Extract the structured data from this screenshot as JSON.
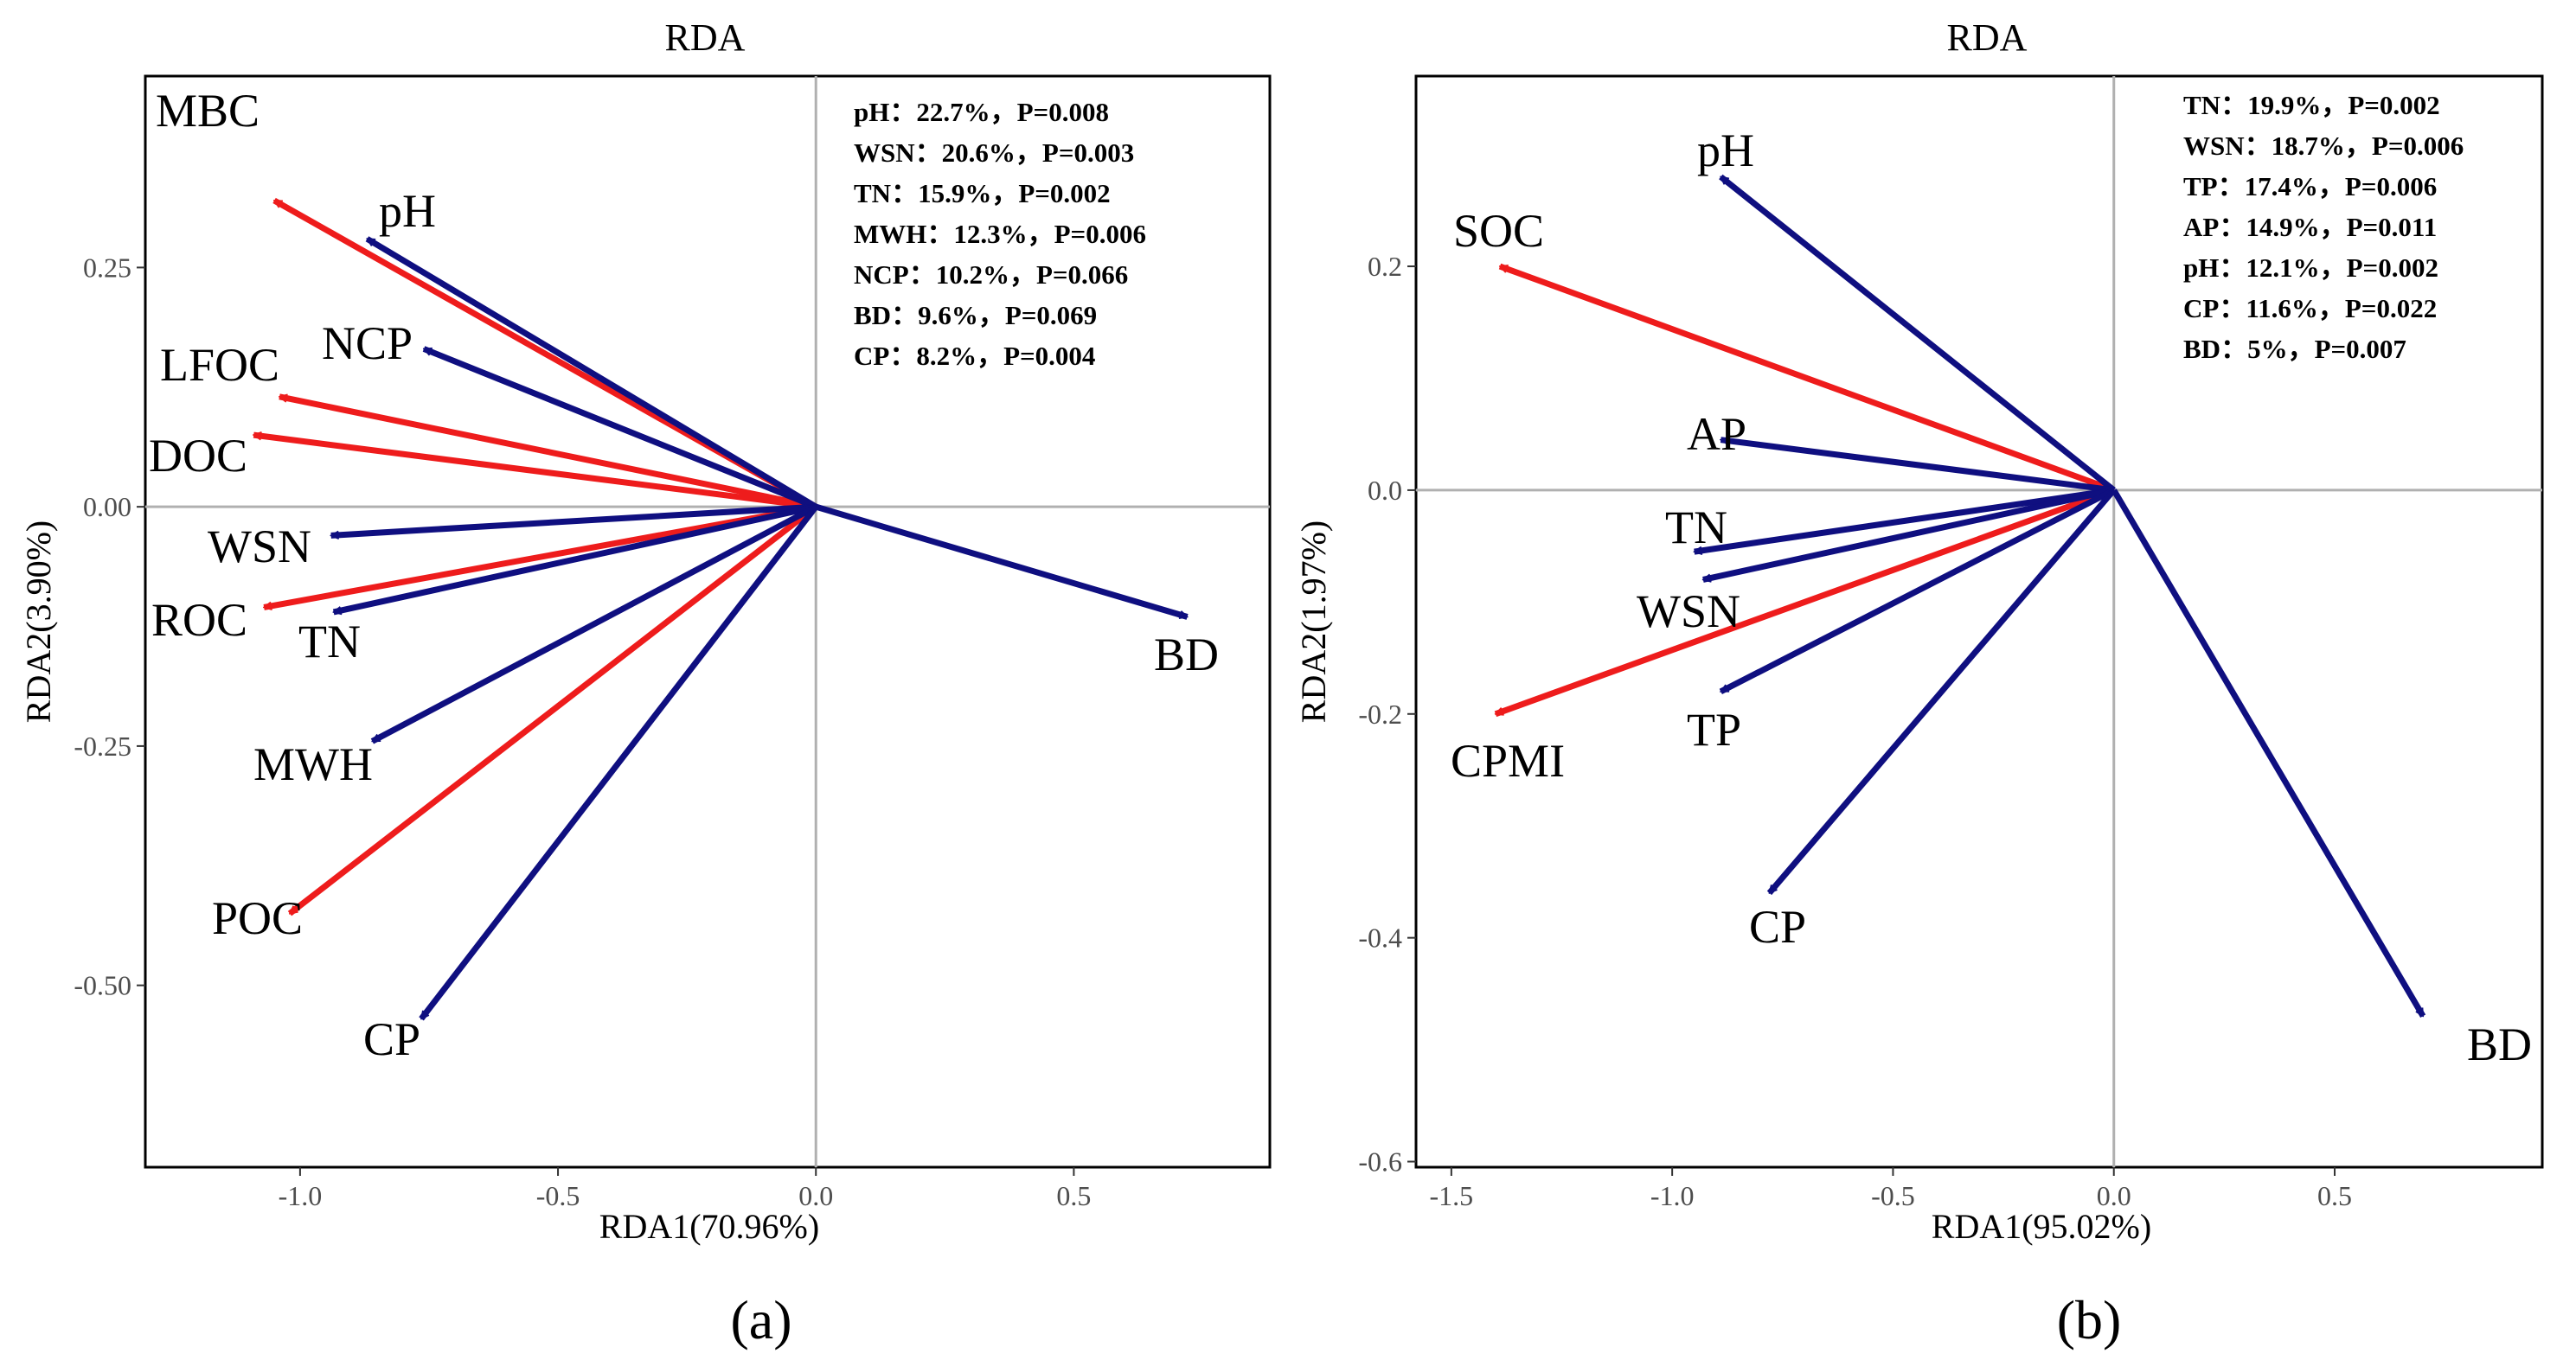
{
  "colors": {
    "response": "#ee1c1c",
    "explanatory": "#0f0f80",
    "refline": "#b0b0b0",
    "frame": "#000000"
  },
  "chart_data": [
    {
      "type": "biplot",
      "panel": "a",
      "title": "RDA",
      "xlabel": "RDA1(70.96%)",
      "ylabel": "RDA2(3.90%)",
      "caption": "(a)",
      "xlim": [
        -1.3,
        0.88
      ],
      "ylim": [
        -0.69,
        0.45
      ],
      "xticks": [
        -1.0,
        -0.5,
        0.0,
        0.5
      ],
      "xtick_labels": [
        "-1.0",
        "-0.5",
        "0.0",
        "0.5"
      ],
      "yticks": [
        0.25,
        0.0,
        -0.25,
        -0.5
      ],
      "ytick_labels": [
        "0.25",
        "0.00",
        "-0.25",
        "-0.50"
      ],
      "stats": [
        "pH：22.7%，P=0.008",
        "WSN：20.6%，P=0.003",
        "TN：15.9%，P=0.002",
        "MWH：12.3%，P=0.006",
        "NCP：10.2%，P=0.066",
        "BD：9.6%，P=0.069",
        "CP：8.2%，P=0.004"
      ],
      "vectors": [
        {
          "name": "MBC",
          "x": -1.05,
          "y": 0.32,
          "kind": "response"
        },
        {
          "name": "LFOC",
          "x": -1.04,
          "y": 0.115,
          "kind": "response"
        },
        {
          "name": "DOC",
          "x": -1.09,
          "y": 0.075,
          "kind": "response"
        },
        {
          "name": "ROC",
          "x": -1.07,
          "y": -0.105,
          "kind": "response"
        },
        {
          "name": "POC",
          "x": -1.02,
          "y": -0.425,
          "kind": "response"
        },
        {
          "name": "pH",
          "x": -0.87,
          "y": 0.28,
          "kind": "explanatory"
        },
        {
          "name": "NCP",
          "x": -0.76,
          "y": 0.165,
          "kind": "explanatory"
        },
        {
          "name": "WSN",
          "x": -0.94,
          "y": -0.03,
          "kind": "explanatory"
        },
        {
          "name": "TN",
          "x": -0.935,
          "y": -0.11,
          "kind": "explanatory"
        },
        {
          "name": "MWH",
          "x": -0.86,
          "y": -0.245,
          "kind": "explanatory"
        },
        {
          "name": "CP",
          "x": -0.765,
          "y": -0.535,
          "kind": "explanatory"
        },
        {
          "name": "BD",
          "x": 0.72,
          "y": -0.115,
          "kind": "explanatory"
        }
      ]
    },
    {
      "type": "biplot",
      "panel": "b",
      "title": "RDA",
      "xlabel": "RDA1(95.02%)",
      "ylabel": "RDA2(1.97%)",
      "caption": "(b)",
      "xlim": [
        -1.58,
        0.97
      ],
      "ylim": [
        -0.605,
        0.37
      ],
      "xticks": [
        -1.5,
        -1.0,
        -0.5,
        0.0,
        0.5
      ],
      "xtick_labels": [
        "-1.5",
        "-1.0",
        "-0.5",
        "0.0",
        "0.5"
      ],
      "yticks": [
        0.2,
        0.0,
        -0.2,
        -0.4,
        -0.6
      ],
      "ytick_labels": [
        "0.2",
        "0.0",
        "-0.2",
        "-0.4",
        "-0.6"
      ],
      "stats": [
        "TN：19.9%，P=0.002",
        "WSN：18.7%，P=0.006",
        "TP：17.4%，P=0.006",
        "AP：14.9%，P=0.011",
        "pH：12.1%，P=0.002",
        "CP：11.6%，P=0.022",
        "BD：5%，P=0.007"
      ],
      "vectors": [
        {
          "name": "SOC",
          "x": -1.39,
          "y": 0.2,
          "kind": "response"
        },
        {
          "name": "CPMI",
          "x": -1.4,
          "y": -0.2,
          "kind": "response"
        },
        {
          "name": "pH",
          "x": -0.89,
          "y": 0.28,
          "kind": "explanatory"
        },
        {
          "name": "AP",
          "x": -0.89,
          "y": 0.045,
          "kind": "explanatory"
        },
        {
          "name": "TN",
          "x": -0.95,
          "y": -0.055,
          "kind": "explanatory"
        },
        {
          "name": "WSN",
          "x": -0.93,
          "y": -0.08,
          "kind": "explanatory"
        },
        {
          "name": "TP",
          "x": -0.89,
          "y": -0.18,
          "kind": "explanatory"
        },
        {
          "name": "CP",
          "x": -0.78,
          "y": -0.36,
          "kind": "explanatory"
        },
        {
          "name": "BD",
          "x": 0.7,
          "y": -0.47,
          "kind": "explanatory"
        }
      ]
    }
  ]
}
